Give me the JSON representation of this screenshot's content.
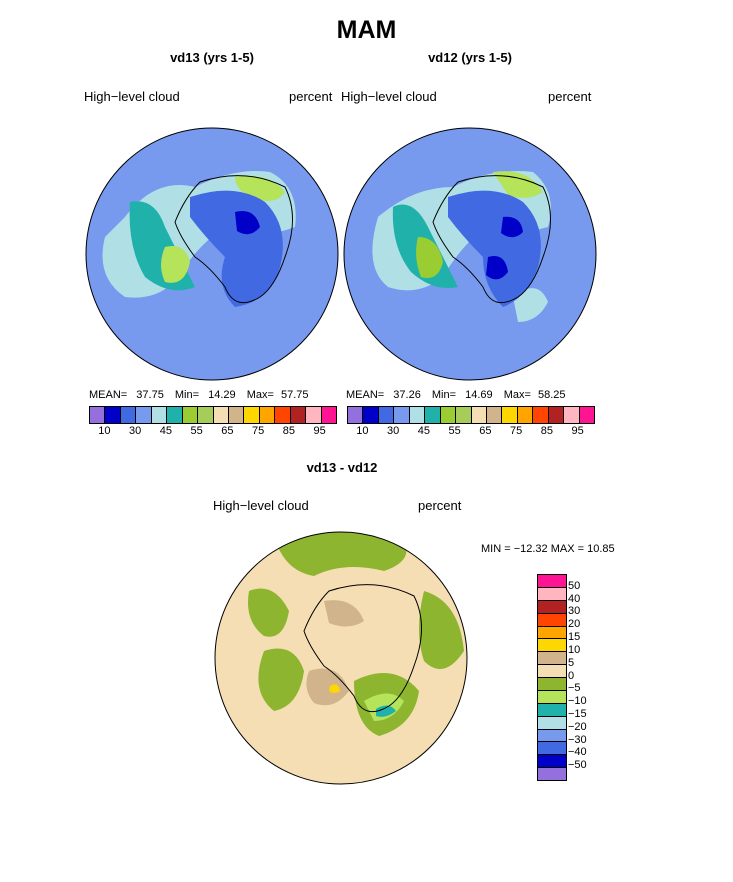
{
  "title": "MAM",
  "panels": [
    {
      "title": "vd13 (yrs 1-5)",
      "left_label": "High−level cloud",
      "right_label": "percent",
      "stats": {
        "mean_label": "MEAN=",
        "mean": "37.75",
        "min_label": "Min=",
        "min": "14.29",
        "max_label": "Max=",
        "max": "57.75"
      }
    },
    {
      "title": "vd12 (yrs 1-5)",
      "left_label": "High−level cloud",
      "right_label": "percent",
      "stats": {
        "mean_label": "MEAN=",
        "mean": "37.26",
        "min_label": "Min=",
        "min": "14.69",
        "max_label": "Max=",
        "max": "58.25"
      }
    },
    {
      "title": "vd13 - vd12",
      "left_label": "High−level cloud",
      "right_label": "percent",
      "minmax": "MIN = −12.32  MAX =   10.85"
    }
  ],
  "colorbar_abs": {
    "colors": [
      "#9370db",
      "#0000c8",
      "#4169e1",
      "#7799ee",
      "#b0e0e6",
      "#20b2aa",
      "#9acd32",
      "#a6cc5a",
      "#f5deb3",
      "#d2b48c",
      "#ffd700",
      "#ffa500",
      "#ff4500",
      "#b22222",
      "#ffb6c1",
      "#ff1493"
    ],
    "tick_labels": [
      "10",
      "30",
      "45",
      "55",
      "65",
      "75",
      "85",
      "95"
    ]
  },
  "colorbar_diff": {
    "colors": [
      "#ff1493",
      "#ffb6c1",
      "#b22222",
      "#ff4500",
      "#ffa500",
      "#ffd700",
      "#d2b48c",
      "#f5deb3",
      "#8db52f",
      "#b5e35a",
      "#20b2aa",
      "#b0e0e6",
      "#7799ee",
      "#4169e1",
      "#0000c8",
      "#9370db"
    ],
    "tick_labels": [
      "50",
      "40",
      "30",
      "20",
      "15",
      "10",
      "5",
      "0",
      "−5",
      "−10",
      "−15",
      "−20",
      "−30",
      "−40",
      "−50"
    ]
  },
  "map_colors": {
    "ocean_abs": "#7799ee",
    "ocean_diff": "#f5deb3"
  }
}
